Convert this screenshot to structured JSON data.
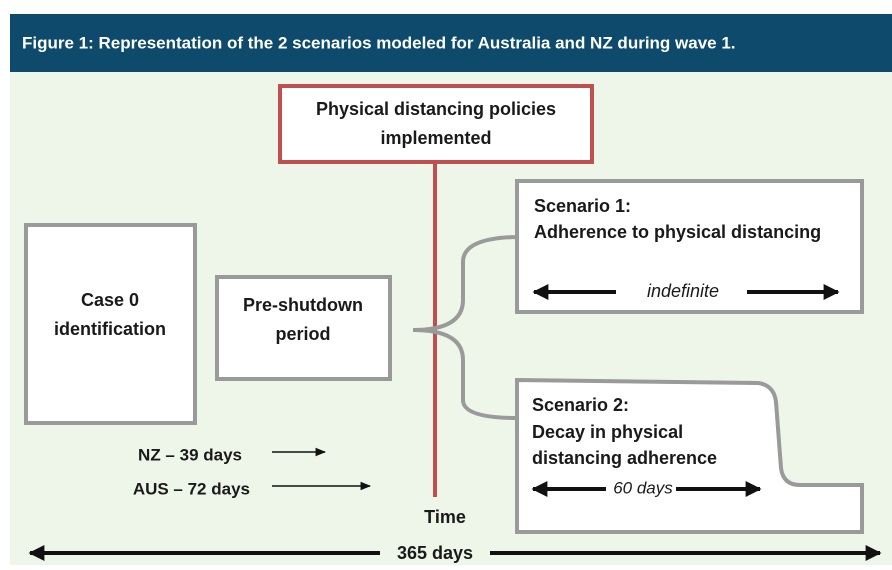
{
  "header": {
    "title": "Figure 1: Representation of the 2 scenarios modeled for Australia and NZ during wave 1."
  },
  "policy": {
    "lines": [
      "Physical distancing policies",
      "implemented"
    ]
  },
  "case0": {
    "lines": [
      "Case 0",
      "identification"
    ]
  },
  "preshutdown": {
    "lines": [
      "Pre-shutdown",
      "period"
    ]
  },
  "scenario1": {
    "lines": [
      "Scenario 1:",
      "Adherence to physical distancing"
    ],
    "duration": "indefinite"
  },
  "scenario2": {
    "lines": [
      "Scenario 2:",
      "Decay in physical",
      "distancing adherence"
    ],
    "duration": "60 days"
  },
  "delays": [
    "NZ – 39 days",
    "AUS – 72 days"
  ],
  "time_label": "Time",
  "total": "365 days"
}
